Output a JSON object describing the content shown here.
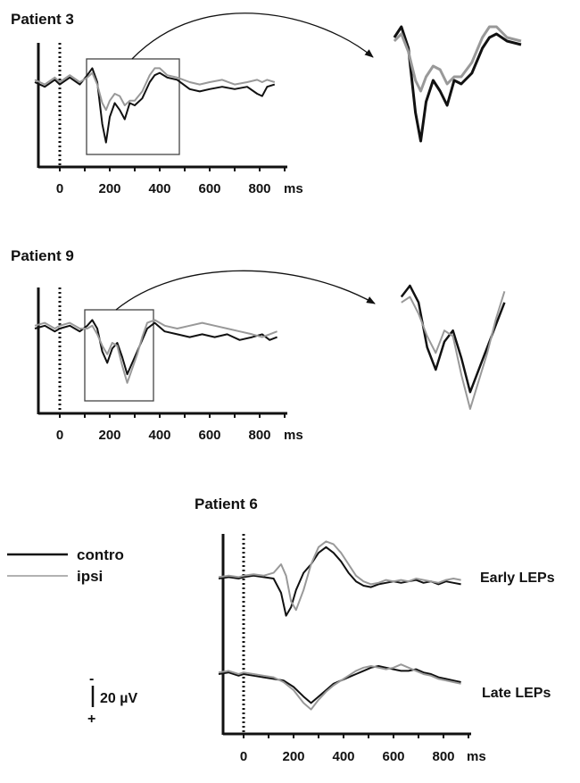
{
  "figure": {
    "legend": {
      "items": [
        {
          "label": "contro",
          "color": "#111111"
        },
        {
          "label": "ipsi",
          "color": "#999999"
        }
      ]
    },
    "scale_bar": {
      "label": "20 µV",
      "negative_sign": "-",
      "positive_sign": "+",
      "amplitude_uv": 20
    }
  },
  "chart_data": [
    {
      "type": "line",
      "title": "Patient 3",
      "x_tick_labels": [
        "0",
        "200",
        "400",
        "600",
        "800"
      ],
      "x_unit": "ms",
      "xlim": [
        -100,
        900
      ],
      "stimulus_onset_ms": 0,
      "zoom_window_ms": [
        100,
        470
      ],
      "series": [
        {
          "name": "contro",
          "color": "#111111",
          "x": [
            -100,
            -60,
            -20,
            0,
            40,
            80,
            110,
            130,
            150,
            170,
            185,
            200,
            220,
            240,
            260,
            280,
            300,
            330,
            360,
            380,
            400,
            430,
            470,
            520,
            560,
            600,
            650,
            700,
            750,
            790,
            810,
            830,
            860
          ],
          "y": [
            0,
            -2,
            1,
            -1,
            2,
            -1,
            3,
            6,
            0,
            -18,
            -26,
            -15,
            -9,
            -12,
            -16,
            -9,
            -10,
            -7,
            0,
            3,
            4,
            2,
            1,
            -3,
            -4,
            -3,
            -2,
            -3,
            -2,
            -5,
            -6,
            -2,
            -1
          ]
        },
        {
          "name": "ipsi",
          "color": "#999999",
          "x": [
            -100,
            -60,
            -20,
            0,
            40,
            80,
            110,
            130,
            150,
            170,
            185,
            200,
            220,
            240,
            260,
            280,
            300,
            330,
            360,
            380,
            400,
            430,
            470,
            520,
            560,
            600,
            650,
            700,
            750,
            790,
            810,
            830,
            860
          ],
          "y": [
            1,
            -1,
            2,
            0,
            3,
            0,
            2,
            4,
            -1,
            -9,
            -12,
            -8,
            -5,
            -6,
            -10,
            -8,
            -8,
            -4,
            3,
            6,
            6,
            3,
            2,
            0,
            -1,
            0,
            1,
            -1,
            0,
            1,
            0,
            1,
            0
          ]
        }
      ]
    },
    {
      "type": "line",
      "title": "Patient 9",
      "x_tick_labels": [
        "0",
        "200",
        "400",
        "600",
        "800"
      ],
      "x_unit": "ms",
      "xlim": [
        -100,
        900
      ],
      "stimulus_onset_ms": 0,
      "zoom_window_ms": [
        100,
        370
      ],
      "series": [
        {
          "name": "contro",
          "color": "#111111",
          "x": [
            -100,
            -60,
            -20,
            0,
            40,
            80,
            110,
            130,
            150,
            170,
            190,
            210,
            230,
            250,
            270,
            290,
            310,
            330,
            350,
            380,
            420,
            470,
            520,
            570,
            620,
            670,
            720,
            770,
            810,
            840,
            870
          ],
          "y": [
            0,
            1,
            -1,
            0,
            1,
            -1,
            1,
            3,
            0,
            -8,
            -12,
            -7,
            -5,
            -10,
            -16,
            -12,
            -8,
            -4,
            0,
            2,
            -1,
            -2,
            -3,
            -2,
            -3,
            -2,
            -4,
            -3,
            -2,
            -4,
            -3
          ]
        },
        {
          "name": "ipsi",
          "color": "#999999",
          "x": [
            -100,
            -60,
            -20,
            0,
            40,
            80,
            110,
            130,
            150,
            170,
            190,
            210,
            230,
            250,
            270,
            290,
            310,
            330,
            350,
            380,
            420,
            470,
            520,
            570,
            620,
            670,
            720,
            770,
            810,
            840,
            870
          ],
          "y": [
            1,
            2,
            0,
            1,
            2,
            0,
            0,
            1,
            -2,
            -6,
            -9,
            -5,
            -6,
            -13,
            -19,
            -14,
            -9,
            -3,
            2,
            3,
            1,
            0,
            1,
            2,
            1,
            0,
            -1,
            -2,
            -3,
            -2,
            -1
          ]
        }
      ]
    },
    {
      "type": "line",
      "title": "Patient 6",
      "x_tick_labels": [
        "0",
        "200",
        "400",
        "600",
        "800"
      ],
      "x_unit": "ms",
      "xlim": [
        -100,
        900
      ],
      "stimulus_onset_ms": 0,
      "panels": [
        {
          "label": "Early LEPs",
          "series": [
            {
              "name": "contro",
              "color": "#111111",
              "x": [
                -100,
                -60,
                -20,
                0,
                40,
                80,
                120,
                150,
                170,
                190,
                210,
                240,
                270,
                300,
                330,
                360,
                390,
                420,
                450,
                480,
                510,
                540,
                570,
                600,
                630,
                660,
                690,
                720,
                750,
                780,
                810,
                840,
                870
              ],
              "y": [
                0,
                1,
                0,
                1,
                2,
                1,
                0,
                -10,
                -26,
                -20,
                -8,
                4,
                10,
                18,
                22,
                18,
                12,
                4,
                -2,
                -5,
                -6,
                -4,
                -3,
                -2,
                -3,
                -2,
                -1,
                -3,
                -2,
                -4,
                -2,
                -3,
                -4
              ]
            },
            {
              "name": "ipsi",
              "color": "#999999",
              "x": [
                -100,
                -60,
                -20,
                0,
                40,
                80,
                120,
                150,
                170,
                190,
                210,
                240,
                270,
                300,
                330,
                360,
                390,
                420,
                450,
                480,
                510,
                540,
                570,
                600,
                630,
                660,
                690,
                720,
                750,
                780,
                810,
                840,
                870
              ],
              "y": [
                1,
                2,
                1,
                2,
                3,
                2,
                4,
                10,
                2,
                -16,
                -22,
                -8,
                10,
                22,
                26,
                24,
                18,
                10,
                2,
                -2,
                -4,
                -3,
                -1,
                -2,
                -1,
                -2,
                0,
                -1,
                -2,
                -3,
                -1,
                0,
                -1
              ]
            }
          ]
        },
        {
          "label": "Late LEPs",
          "series": [
            {
              "name": "contro",
              "color": "#111111",
              "x": [
                -100,
                -60,
                -20,
                0,
                40,
                80,
                120,
                160,
                200,
                240,
                270,
                300,
                330,
                360,
                390,
                420,
                450,
                480,
                510,
                540,
                570,
                600,
                630,
                660,
                690,
                720,
                750,
                780,
                810,
                840,
                870
              ],
              "y": [
                0,
                1,
                -1,
                0,
                -1,
                -2,
                -3,
                -4,
                -8,
                -14,
                -18,
                -14,
                -10,
                -6,
                -4,
                -2,
                0,
                2,
                4,
                5,
                4,
                3,
                2,
                2,
                3,
                1,
                0,
                -2,
                -3,
                -4,
                -5
              ]
            },
            {
              "name": "ipsi",
              "color": "#999999",
              "x": [
                -100,
                -60,
                -20,
                0,
                40,
                80,
                120,
                160,
                200,
                240,
                270,
                300,
                330,
                360,
                390,
                420,
                450,
                480,
                510,
                540,
                570,
                600,
                630,
                660,
                690,
                720,
                750,
                780,
                810,
                840,
                870
              ],
              "y": [
                1,
                2,
                0,
                1,
                0,
                -1,
                -2,
                -5,
                -10,
                -18,
                -22,
                -16,
                -11,
                -7,
                -4,
                -1,
                2,
                4,
                5,
                4,
                3,
                4,
                6,
                4,
                2,
                0,
                -1,
                -3,
                -4,
                -5,
                -6
              ]
            }
          ]
        }
      ]
    }
  ]
}
